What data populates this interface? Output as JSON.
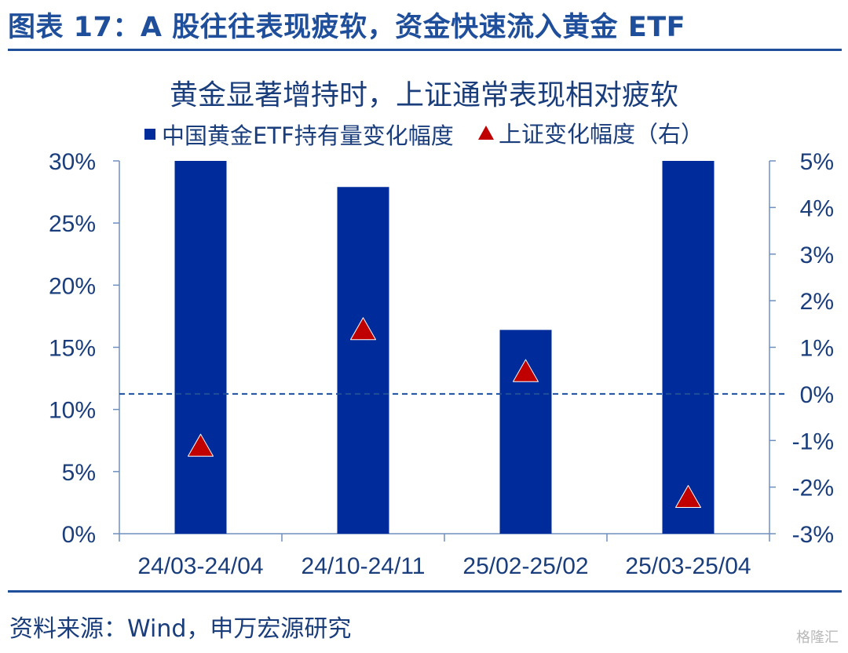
{
  "figure": {
    "title": "图表 17：A 股往往表现疲软，资金快速流入黄金 ETF",
    "source": "资料来源：Wind，申万宏源研究",
    "watermark": "格隆汇"
  },
  "chart_data": {
    "type": "bar",
    "title": "黄金显著增持时，上证通常表现相对疲软",
    "categories": [
      "24/03-24/04",
      "24/10-24/11",
      "25/02-25/02",
      "25/03-25/04"
    ],
    "series": [
      {
        "name": "中国黄金ETF持有量变化幅度",
        "type": "bar",
        "axis": "left",
        "values": [
          30.0,
          27.9,
          16.4,
          30.0
        ],
        "color": "#002B9A"
      },
      {
        "name": "上证变化幅度（右）",
        "type": "scatter",
        "marker": "triangle",
        "axis": "right",
        "values": [
          -1.1,
          1.4,
          0.5,
          -2.2
        ],
        "color": "#c00000"
      }
    ],
    "y_left": {
      "min": 0,
      "max": 30,
      "step": 5,
      "ticks": [
        "0%",
        "5%",
        "10%",
        "15%",
        "20%",
        "25%",
        "30%"
      ]
    },
    "y_right": {
      "min": -3,
      "max": 5,
      "step": 1,
      "ticks": [
        "-3%",
        "-2%",
        "-1%",
        "0%",
        "1%",
        "2%",
        "3%",
        "4%",
        "5%"
      ]
    },
    "reference_line": {
      "axis": "right",
      "value": 0,
      "style": "dashed"
    },
    "legend_position": "top"
  }
}
